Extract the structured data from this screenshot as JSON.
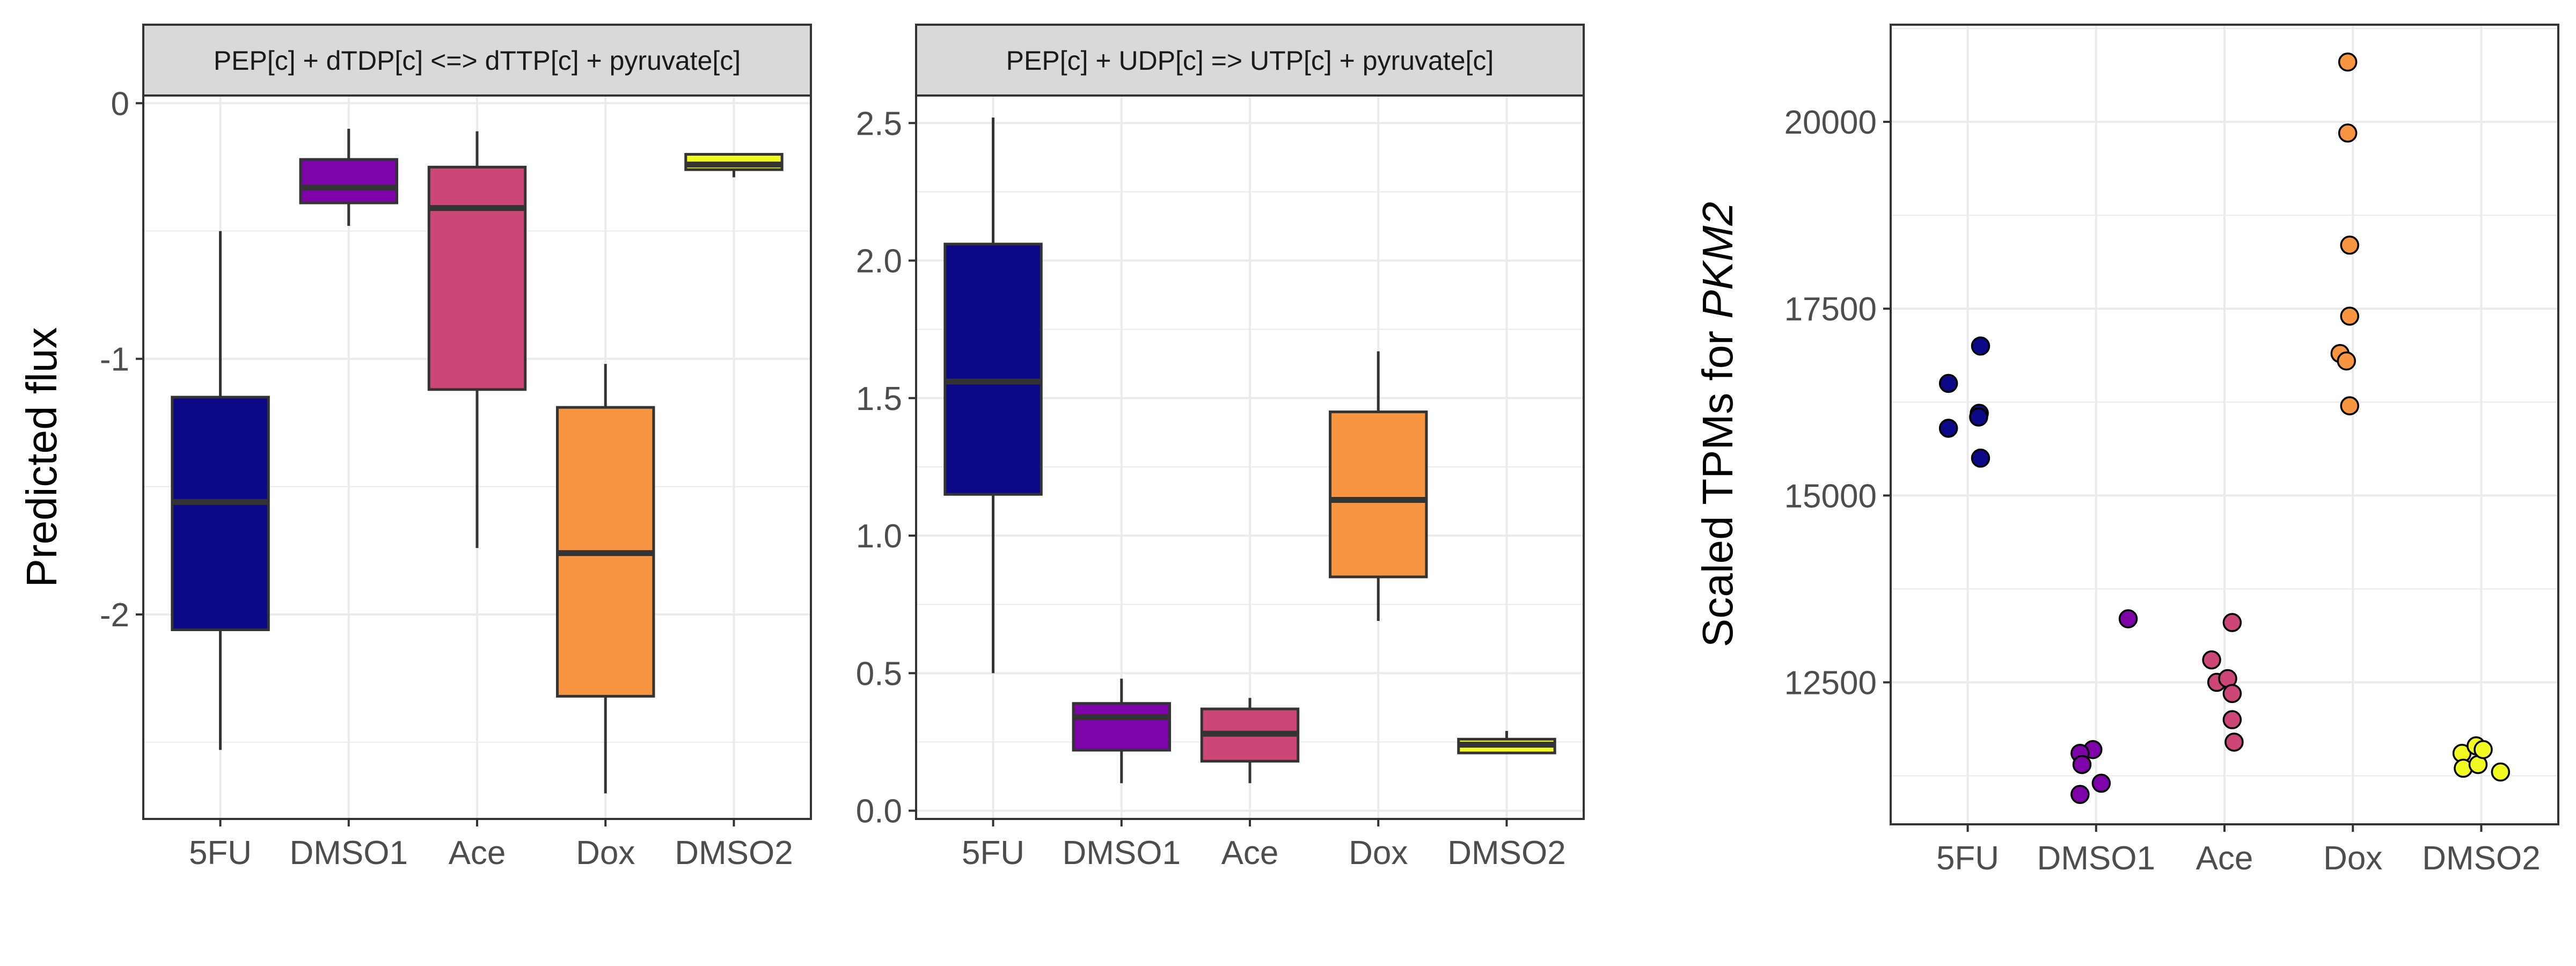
{
  "colors": {
    "5FU": "#0d0887",
    "DMSO1": "#7e03a8",
    "Ace": "#cc4778",
    "Dox": "#f89540",
    "DMSO2": "#f0f921",
    "panel_border": "#333333",
    "grid": "#ebebeb",
    "strip_fill": "#d9d9d9",
    "median_line": "#333333",
    "whisker": "#333333"
  },
  "chart_data": [
    {
      "type": "box",
      "strip_title": "PEP[c] + dTDP[c] <=> dTTP[c] + pyruvate[c]",
      "ylabel": "Predicted flux",
      "xlabel": "",
      "categories": [
        "5FU",
        "DMSO1",
        "Ace",
        "Dox",
        "DMSO2"
      ],
      "ylim": [
        -2.8,
        0.03
      ],
      "yticks": [
        0,
        -1,
        -2
      ],
      "ytick_labels": [
        "0",
        "-1",
        "-2"
      ],
      "grid": true,
      "boxes": [
        {
          "category": "5FU",
          "min": -2.53,
          "q1": -2.06,
          "median": -1.56,
          "q3": -1.15,
          "max": -0.5
        },
        {
          "category": "DMSO1",
          "min": -0.48,
          "q1": -0.39,
          "median": -0.33,
          "q3": -0.22,
          "max": -0.1
        },
        {
          "category": "Ace",
          "min": -1.74,
          "q1": -1.12,
          "median": -0.41,
          "q3": -0.25,
          "max": -0.11
        },
        {
          "category": "Dox",
          "min": -2.7,
          "q1": -2.32,
          "median": -1.76,
          "q3": -1.19,
          "max": -1.02
        },
        {
          "category": "DMSO2",
          "min": -0.29,
          "q1": -0.26,
          "median": -0.24,
          "q3": -0.2,
          "max": -0.2
        }
      ]
    },
    {
      "type": "box",
      "strip_title": "PEP[c] + UDP[c] => UTP[c] + pyruvate[c]",
      "ylabel": "",
      "xlabel": "",
      "categories": [
        "5FU",
        "DMSO1",
        "Ace",
        "Dox",
        "DMSO2"
      ],
      "ylim": [
        -0.03,
        2.6
      ],
      "yticks": [
        0,
        0.5,
        1,
        1.5,
        2,
        2.5
      ],
      "ytick_labels": [
        "0.0",
        "0.5",
        "1.0",
        "1.5",
        "2.0",
        "2.5"
      ],
      "grid": true,
      "boxes": [
        {
          "category": "5FU",
          "min": 0.5,
          "q1": 1.15,
          "median": 1.56,
          "q3": 2.06,
          "max": 2.52
        },
        {
          "category": "DMSO1",
          "min": 0.1,
          "q1": 0.22,
          "median": 0.34,
          "q3": 0.39,
          "max": 0.48
        },
        {
          "category": "Ace",
          "min": 0.1,
          "q1": 0.18,
          "median": 0.28,
          "q3": 0.37,
          "max": 0.41
        },
        {
          "category": "Dox",
          "min": 0.69,
          "q1": 0.85,
          "median": 1.13,
          "q3": 1.45,
          "max": 1.67
        },
        {
          "category": "DMSO2",
          "min": 0.21,
          "q1": 0.21,
          "median": 0.24,
          "q3": 0.26,
          "max": 0.29
        }
      ]
    },
    {
      "type": "scatter",
      "ylabel_prefix": "Scaled TPMs for ",
      "ylabel_gene": "PKM2",
      "xlabel": "",
      "categories": [
        "5FU",
        "DMSO1",
        "Ace",
        "Dox",
        "DMSO2"
      ],
      "ylim": [
        10600,
        21300
      ],
      "yticks": [
        12500,
        15000,
        17500,
        20000
      ],
      "ytick_labels": [
        "12500",
        "15000",
        "17500",
        "20000"
      ],
      "grid": true,
      "points": [
        {
          "category": "5FU",
          "jitter": -0.3,
          "y": 16500
        },
        {
          "category": "5FU",
          "jitter": -0.3,
          "y": 15900
        },
        {
          "category": "5FU",
          "jitter": 0.2,
          "y": 17000
        },
        {
          "category": "5FU",
          "jitter": 0.18,
          "y": 16100
        },
        {
          "category": "5FU",
          "jitter": 0.17,
          "y": 16050
        },
        {
          "category": "5FU",
          "jitter": 0.2,
          "y": 15500
        },
        {
          "category": "DMSO1",
          "jitter": 0.5,
          "y": 13350
        },
        {
          "category": "DMSO1",
          "jitter": -0.05,
          "y": 11600
        },
        {
          "category": "DMSO1",
          "jitter": -0.25,
          "y": 11550
        },
        {
          "category": "DMSO1",
          "jitter": -0.22,
          "y": 11400
        },
        {
          "category": "DMSO1",
          "jitter": 0.08,
          "y": 11150
        },
        {
          "category": "DMSO1",
          "jitter": -0.25,
          "y": 11000
        },
        {
          "category": "Ace",
          "jitter": -0.2,
          "y": 12800
        },
        {
          "category": "Ace",
          "jitter": -0.12,
          "y": 12500
        },
        {
          "category": "Ace",
          "jitter": 0.05,
          "y": 12550
        },
        {
          "category": "Ace",
          "jitter": 0.12,
          "y": 12350
        },
        {
          "category": "Ace",
          "jitter": 0.12,
          "y": 12000
        },
        {
          "category": "Ace",
          "jitter": 0.15,
          "y": 11700
        },
        {
          "category": "Ace",
          "jitter": 0.12,
          "y": 13300
        },
        {
          "category": "Dox",
          "jitter": -0.08,
          "y": 20800
        },
        {
          "category": "Dox",
          "jitter": -0.08,
          "y": 19850
        },
        {
          "category": "Dox",
          "jitter": -0.05,
          "y": 18350
        },
        {
          "category": "Dox",
          "jitter": -0.05,
          "y": 17400
        },
        {
          "category": "Dox",
          "jitter": -0.2,
          "y": 16900
        },
        {
          "category": "Dox",
          "jitter": -0.1,
          "y": 16800
        },
        {
          "category": "Dox",
          "jitter": -0.05,
          "y": 16200
        },
        {
          "category": "DMSO2",
          "jitter": -0.3,
          "y": 11550
        },
        {
          "category": "DMSO2",
          "jitter": -0.28,
          "y": 11350
        },
        {
          "category": "DMSO2",
          "jitter": -0.08,
          "y": 11650
        },
        {
          "category": "DMSO2",
          "jitter": -0.05,
          "y": 11400
        },
        {
          "category": "DMSO2",
          "jitter": 0.03,
          "y": 11600
        },
        {
          "category": "DMSO2",
          "jitter": 0.3,
          "y": 11300
        }
      ]
    }
  ]
}
